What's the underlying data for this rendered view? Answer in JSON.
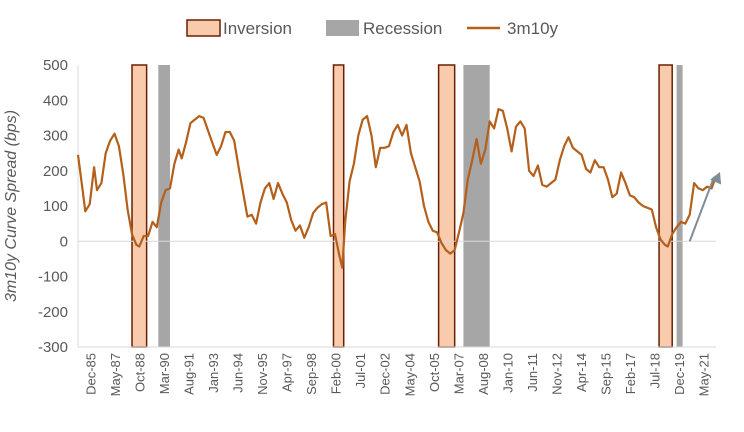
{
  "chart_data": {
    "type": "line",
    "title": "",
    "ylabel": "3m10y Curve Spread (bps)",
    "xlabel": "",
    "ylim": [
      -300,
      500
    ],
    "yticks": [
      500,
      400,
      300,
      200,
      100,
      0,
      -100,
      -200,
      -300
    ],
    "x_start": "1985-12",
    "x_end": "2022-05",
    "xtick_labels": [
      "Dec-85",
      "May-87",
      "Oct-88",
      "Mar-90",
      "Aug-91",
      "Jan-93",
      "Jun-94",
      "Nov-95",
      "Apr-97",
      "Sep-98",
      "Feb-00",
      "Jul-01",
      "Dec-02",
      "May-04",
      "Oct-05",
      "Mar-07",
      "Aug-08",
      "Jan-10",
      "Jun-11",
      "Nov-12",
      "Apr-14",
      "Sep-15",
      "Feb-17",
      "Jul-18",
      "Dec-19",
      "May-21"
    ],
    "legend": {
      "position": "top",
      "items": [
        {
          "name": "Inversion",
          "color": "#f8cbad",
          "border": "#6b1f00",
          "kind": "box"
        },
        {
          "name": "Recession",
          "color": "#a6a6a6",
          "kind": "box"
        },
        {
          "name": "3m10y",
          "color": "#b45f1a",
          "kind": "line"
        }
      ]
    },
    "inversion_periods": [
      {
        "start": "1989-01",
        "end": "1989-11"
      },
      {
        "start": "2000-07",
        "end": "2001-02"
      },
      {
        "start": "2006-07",
        "end": "2007-06"
      },
      {
        "start": "2019-02",
        "end": "2019-11"
      }
    ],
    "recession_periods": [
      {
        "start": "1990-07",
        "end": "1991-03"
      },
      {
        "start": "2007-12",
        "end": "2009-06"
      },
      {
        "start": "2020-02",
        "end": "2020-04"
      }
    ],
    "series": [
      {
        "name": "3m10y",
        "color": "#b45f1a",
        "points": [
          {
            "x": "1985-12",
            "y": 245
          },
          {
            "x": "1986-03",
            "y": 150
          },
          {
            "x": "1986-05",
            "y": 85
          },
          {
            "x": "1986-08",
            "y": 105
          },
          {
            "x": "1986-11",
            "y": 210
          },
          {
            "x": "1987-01",
            "y": 145
          },
          {
            "x": "1987-04",
            "y": 165
          },
          {
            "x": "1987-07",
            "y": 250
          },
          {
            "x": "1987-10",
            "y": 285
          },
          {
            "x": "1988-01",
            "y": 305
          },
          {
            "x": "1988-04",
            "y": 270
          },
          {
            "x": "1988-07",
            "y": 190
          },
          {
            "x": "1988-10",
            "y": 90
          },
          {
            "x": "1989-01",
            "y": 20
          },
          {
            "x": "1989-04",
            "y": -10
          },
          {
            "x": "1989-06",
            "y": -15
          },
          {
            "x": "1989-09",
            "y": 15
          },
          {
            "x": "1989-12",
            "y": 15
          },
          {
            "x": "1990-03",
            "y": 55
          },
          {
            "x": "1990-06",
            "y": 40
          },
          {
            "x": "1990-09",
            "y": 110
          },
          {
            "x": "1990-12",
            "y": 145
          },
          {
            "x": "1991-03",
            "y": 150
          },
          {
            "x": "1991-06",
            "y": 220
          },
          {
            "x": "1991-09",
            "y": 260
          },
          {
            "x": "1991-11",
            "y": 235
          },
          {
            "x": "1992-02",
            "y": 280
          },
          {
            "x": "1992-05",
            "y": 335
          },
          {
            "x": "1992-08",
            "y": 345
          },
          {
            "x": "1992-11",
            "y": 355
          },
          {
            "x": "1993-02",
            "y": 350
          },
          {
            "x": "1993-05",
            "y": 315
          },
          {
            "x": "1993-08",
            "y": 280
          },
          {
            "x": "1993-11",
            "y": 245
          },
          {
            "x": "1994-02",
            "y": 270
          },
          {
            "x": "1994-05",
            "y": 310
          },
          {
            "x": "1994-08",
            "y": 310
          },
          {
            "x": "1994-11",
            "y": 285
          },
          {
            "x": "1995-02",
            "y": 210
          },
          {
            "x": "1995-05",
            "y": 140
          },
          {
            "x": "1995-08",
            "y": 70
          },
          {
            "x": "1995-11",
            "y": 75
          },
          {
            "x": "1996-02",
            "y": 50
          },
          {
            "x": "1996-05",
            "y": 110
          },
          {
            "x": "1996-08",
            "y": 150
          },
          {
            "x": "1996-11",
            "y": 165
          },
          {
            "x": "1997-02",
            "y": 120
          },
          {
            "x": "1997-05",
            "y": 165
          },
          {
            "x": "1997-08",
            "y": 135
          },
          {
            "x": "1997-11",
            "y": 110
          },
          {
            "x": "1998-02",
            "y": 60
          },
          {
            "x": "1998-05",
            "y": 30
          },
          {
            "x": "1998-08",
            "y": 45
          },
          {
            "x": "1998-11",
            "y": 10
          },
          {
            "x": "1999-02",
            "y": 40
          },
          {
            "x": "1999-05",
            "y": 80
          },
          {
            "x": "1999-08",
            "y": 95
          },
          {
            "x": "1999-11",
            "y": 105
          },
          {
            "x": "2000-02",
            "y": 110
          },
          {
            "x": "2000-05",
            "y": 15
          },
          {
            "x": "2000-08",
            "y": 20
          },
          {
            "x": "2000-11",
            "y": -40
          },
          {
            "x": "2001-01",
            "y": -75
          },
          {
            "x": "2001-03",
            "y": 55
          },
          {
            "x": "2001-06",
            "y": 170
          },
          {
            "x": "2001-09",
            "y": 220
          },
          {
            "x": "2001-12",
            "y": 300
          },
          {
            "x": "2002-03",
            "y": 345
          },
          {
            "x": "2002-06",
            "y": 355
          },
          {
            "x": "2002-09",
            "y": 300
          },
          {
            "x": "2002-12",
            "y": 210
          },
          {
            "x": "2003-03",
            "y": 265
          },
          {
            "x": "2003-06",
            "y": 265
          },
          {
            "x": "2003-09",
            "y": 270
          },
          {
            "x": "2003-12",
            "y": 310
          },
          {
            "x": "2004-03",
            "y": 330
          },
          {
            "x": "2004-06",
            "y": 300
          },
          {
            "x": "2004-09",
            "y": 330
          },
          {
            "x": "2004-12",
            "y": 250
          },
          {
            "x": "2005-03",
            "y": 210
          },
          {
            "x": "2005-06",
            "y": 170
          },
          {
            "x": "2005-09",
            "y": 100
          },
          {
            "x": "2005-12",
            "y": 55
          },
          {
            "x": "2006-03",
            "y": 30
          },
          {
            "x": "2006-06",
            "y": 25
          },
          {
            "x": "2006-09",
            "y": -5
          },
          {
            "x": "2006-12",
            "y": -25
          },
          {
            "x": "2007-03",
            "y": -35
          },
          {
            "x": "2007-06",
            "y": -25
          },
          {
            "x": "2007-09",
            "y": 25
          },
          {
            "x": "2007-12",
            "y": 80
          },
          {
            "x": "2008-03",
            "y": 175
          },
          {
            "x": "2008-06",
            "y": 230
          },
          {
            "x": "2008-09",
            "y": 290
          },
          {
            "x": "2008-12",
            "y": 220
          },
          {
            "x": "2009-03",
            "y": 260
          },
          {
            "x": "2009-06",
            "y": 340
          },
          {
            "x": "2009-09",
            "y": 320
          },
          {
            "x": "2009-12",
            "y": 375
          },
          {
            "x": "2010-03",
            "y": 370
          },
          {
            "x": "2010-06",
            "y": 320
          },
          {
            "x": "2010-09",
            "y": 255
          },
          {
            "x": "2010-12",
            "y": 325
          },
          {
            "x": "2011-03",
            "y": 340
          },
          {
            "x": "2011-06",
            "y": 320
          },
          {
            "x": "2011-09",
            "y": 200
          },
          {
            "x": "2011-12",
            "y": 185
          },
          {
            "x": "2012-03",
            "y": 215
          },
          {
            "x": "2012-06",
            "y": 160
          },
          {
            "x": "2012-09",
            "y": 155
          },
          {
            "x": "2012-12",
            "y": 165
          },
          {
            "x": "2013-03",
            "y": 175
          },
          {
            "x": "2013-06",
            "y": 230
          },
          {
            "x": "2013-09",
            "y": 270
          },
          {
            "x": "2013-12",
            "y": 295
          },
          {
            "x": "2014-03",
            "y": 265
          },
          {
            "x": "2014-06",
            "y": 255
          },
          {
            "x": "2014-09",
            "y": 245
          },
          {
            "x": "2014-12",
            "y": 205
          },
          {
            "x": "2015-03",
            "y": 195
          },
          {
            "x": "2015-06",
            "y": 230
          },
          {
            "x": "2015-09",
            "y": 210
          },
          {
            "x": "2015-12",
            "y": 210
          },
          {
            "x": "2016-03",
            "y": 175
          },
          {
            "x": "2016-06",
            "y": 125
          },
          {
            "x": "2016-09",
            "y": 135
          },
          {
            "x": "2016-12",
            "y": 195
          },
          {
            "x": "2017-03",
            "y": 165
          },
          {
            "x": "2017-06",
            "y": 130
          },
          {
            "x": "2017-09",
            "y": 125
          },
          {
            "x": "2017-12",
            "y": 110
          },
          {
            "x": "2018-03",
            "y": 100
          },
          {
            "x": "2018-06",
            "y": 95
          },
          {
            "x": "2018-09",
            "y": 90
          },
          {
            "x": "2018-12",
            "y": 40
          },
          {
            "x": "2019-03",
            "y": 5
          },
          {
            "x": "2019-06",
            "y": -10
          },
          {
            "x": "2019-08",
            "y": -15
          },
          {
            "x": "2019-11",
            "y": 20
          },
          {
            "x": "2020-02",
            "y": 40
          },
          {
            "x": "2020-05",
            "y": 55
          },
          {
            "x": "2020-08",
            "y": 50
          },
          {
            "x": "2020-11",
            "y": 75
          },
          {
            "x": "2021-02",
            "y": 165
          },
          {
            "x": "2021-05",
            "y": 150
          },
          {
            "x": "2021-08",
            "y": 145
          },
          {
            "x": "2021-11",
            "y": 155
          },
          {
            "x": "2022-02",
            "y": 150
          },
          {
            "x": "2022-05",
            "y": 185
          }
        ]
      }
    ],
    "annotations": [
      {
        "type": "arrow",
        "from": {
          "x": "2020-11",
          "y": 0
        },
        "to": {
          "x": "2022-05",
          "y": 185
        },
        "color": "#7f8c99"
      }
    ],
    "grid": false,
    "zero_line": true
  }
}
